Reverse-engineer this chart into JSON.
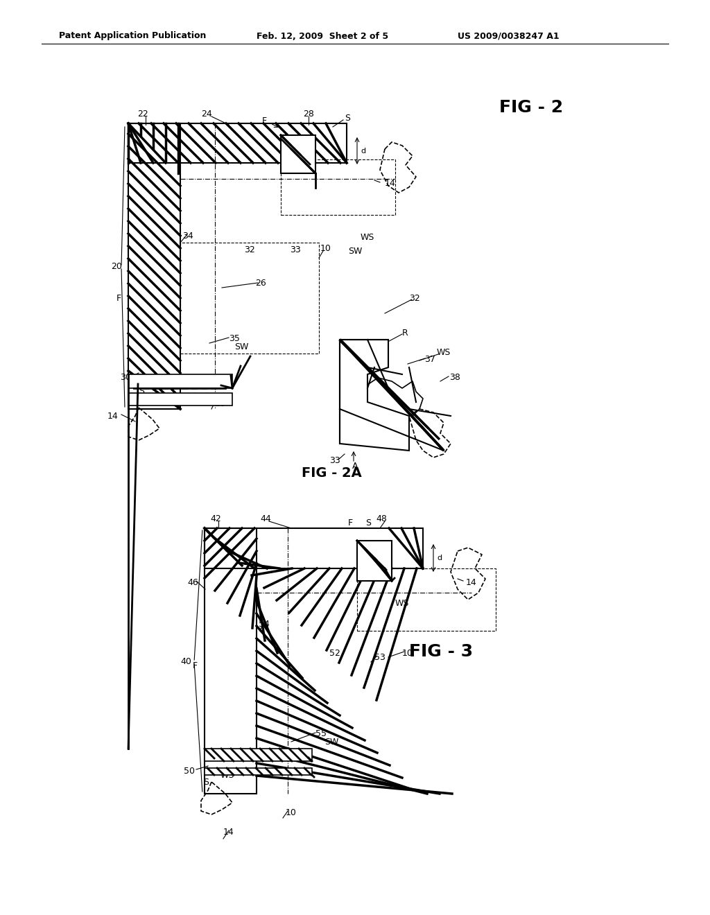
{
  "bg_color": "#ffffff",
  "header_left": "Patent Application Publication",
  "header_mid": "Feb. 12, 2009  Sheet 2 of 5",
  "header_right": "US 2009/0038247 A1",
  "fig2_title": "FIG - 2",
  "fig2a_title": "FIG - 2A",
  "fig3_title": "FIG - 3",
  "line_color": "#000000",
  "hatch_color": "#000000",
  "text_color": "#000000"
}
